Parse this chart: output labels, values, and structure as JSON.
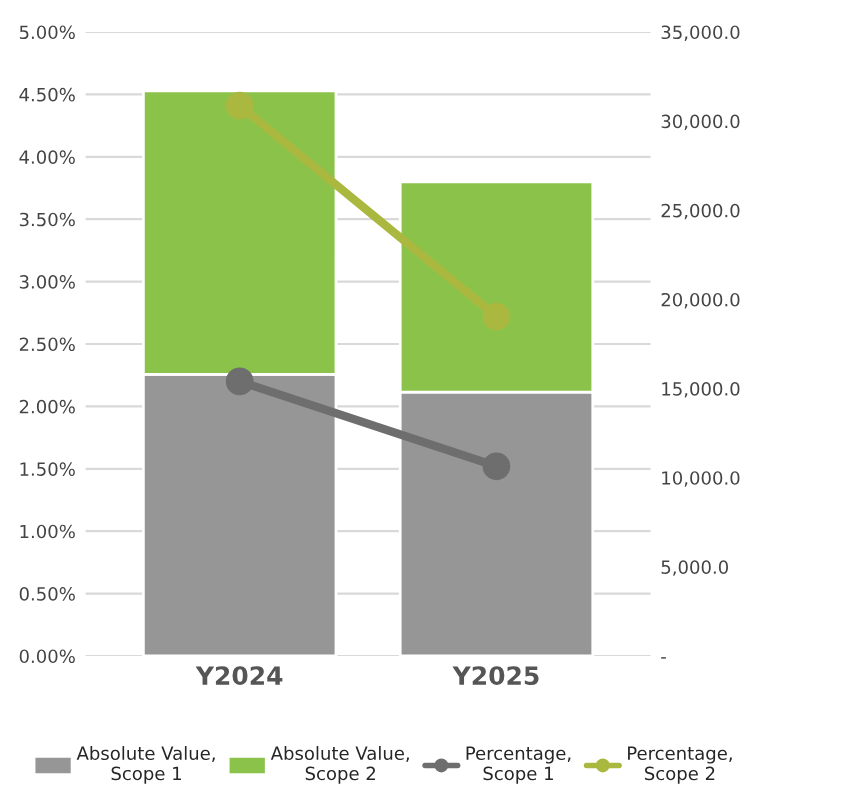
{
  "chart_data": {
    "type": "bar",
    "stacked": true,
    "categories": [
      "Y2024",
      "Y2025"
    ],
    "series": [
      {
        "name": "Absolute Value, Scope 1",
        "axis": "y2",
        "color": "#969696",
        "values": [
          15800,
          14800
        ]
      },
      {
        "name": "Absolute Value, Scope 2",
        "axis": "y2",
        "color": "#8bc34a",
        "values": [
          15900,
          11800
        ]
      },
      {
        "name": "Percentage, Scope 1",
        "type": "line",
        "axis": "y",
        "color": "#6e6e6e",
        "values": [
          2.2,
          1.52
        ]
      },
      {
        "name": "Percentage, Scope 2",
        "type": "line",
        "axis": "y",
        "color": "#aab840",
        "values": [
          4.41,
          2.72
        ]
      }
    ],
    "ylim": [
      0,
      5
    ],
    "yticks": [
      {
        "value": 0,
        "label": "0.00%"
      },
      {
        "value": 0.5,
        "label": "0.50%"
      },
      {
        "value": 1,
        "label": "1.00%"
      },
      {
        "value": 1.5,
        "label": "1.50%"
      },
      {
        "value": 2,
        "label": "2.00%"
      },
      {
        "value": 2.5,
        "label": "2.50%"
      },
      {
        "value": 3,
        "label": "3.00%"
      },
      {
        "value": 3.5,
        "label": "3.50%"
      },
      {
        "value": 4,
        "label": "4.00%"
      },
      {
        "value": 4.5,
        "label": "4.50%"
      },
      {
        "value": 5,
        "label": "5.00%"
      }
    ],
    "y2lim": [
      0,
      35000
    ],
    "y2ticks": [
      {
        "value": 0,
        "label": "-"
      },
      {
        "value": 5000,
        "label": "5,000.0"
      },
      {
        "value": 10000,
        "label": "10,000.0"
      },
      {
        "value": 15000,
        "label": "15,000.0"
      },
      {
        "value": 20000,
        "label": "20,000.0"
      },
      {
        "value": 25000,
        "label": "25,000.0"
      },
      {
        "value": 30000,
        "label": "30,000.0"
      },
      {
        "value": 35000,
        "label": "35,000.0"
      }
    ],
    "grid": "y",
    "legend": "bottom",
    "marker": "circle",
    "line_style": "solid"
  }
}
